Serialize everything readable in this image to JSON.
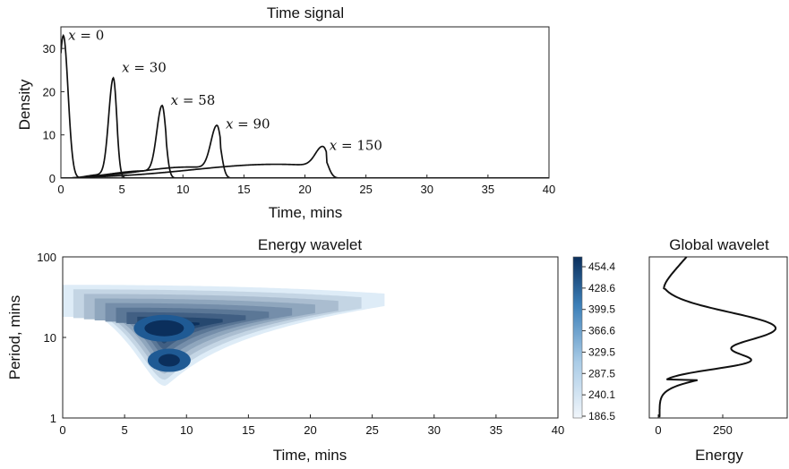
{
  "chart_data": [
    {
      "id": "time_signal",
      "type": "line",
      "title": "Time signal",
      "xlabel": "Time, mins",
      "ylabel": "Density",
      "xlim": [
        0,
        40
      ],
      "ylim": [
        0,
        35
      ],
      "xticks": [
        "0",
        "5",
        "10",
        "15",
        "20",
        "25",
        "30",
        "35",
        "40"
      ],
      "yticks": [
        "0",
        "10",
        "20",
        "30"
      ],
      "grid": false,
      "series": [
        {
          "label": "x = 0",
          "var": "x",
          "val": "0",
          "peak_time": 0.2,
          "peak_density": 33
        },
        {
          "label": "x = 30",
          "var": "x",
          "val": "30",
          "peak_time": 4.3,
          "peak_density": 22.5
        },
        {
          "label": "x = 58",
          "var": "x",
          "val": "58",
          "peak_time": 8.3,
          "peak_density": 15.5
        },
        {
          "label": "x = 90",
          "var": "x",
          "val": "90",
          "peak_time": 12.8,
          "peak_density": 10.2
        },
        {
          "label": "x = 150",
          "var": "x",
          "val": "150",
          "peak_time": 21.5,
          "peak_density": 4.8
        }
      ]
    },
    {
      "id": "energy_wavelet",
      "type": "heatmap",
      "title": "Energy wavelet",
      "xlabel": "Time, mins",
      "ylabel": "Period, mins",
      "xlim": [
        0,
        40
      ],
      "ylim": [
        1,
        100
      ],
      "yscale": "log",
      "xticks": [
        "0",
        "5",
        "10",
        "15",
        "20",
        "25",
        "30",
        "35",
        "40"
      ],
      "yticks": [
        "1",
        "10",
        "100"
      ],
      "colorbar": {
        "ticks": [
          "454.4",
          "428.6",
          "399.5",
          "366.6",
          "329.5",
          "287.5",
          "240.1",
          "186.5"
        ],
        "cmap_low": "#eef4fa",
        "cmap_high": "#0b2f5c"
      },
      "maxima": [
        {
          "time": 8.2,
          "period": 13
        },
        {
          "time": 8.6,
          "period": 5.2
        }
      ],
      "extent": {
        "time_start": 0,
        "time_end": 26,
        "period_min": 2.5,
        "period_max": 45
      }
    },
    {
      "id": "global_wavelet",
      "type": "line",
      "title": "Global wavelet",
      "xlabel": "Energy",
      "ylabel": "",
      "xticks": [
        "0",
        "250"
      ],
      "xlim": [
        0,
        500
      ],
      "ylim": [
        1,
        100
      ],
      "yscale": "log",
      "peaks": [
        {
          "period": 13,
          "energy": 455
        },
        {
          "period": 5.2,
          "energy": 440
        }
      ]
    }
  ]
}
